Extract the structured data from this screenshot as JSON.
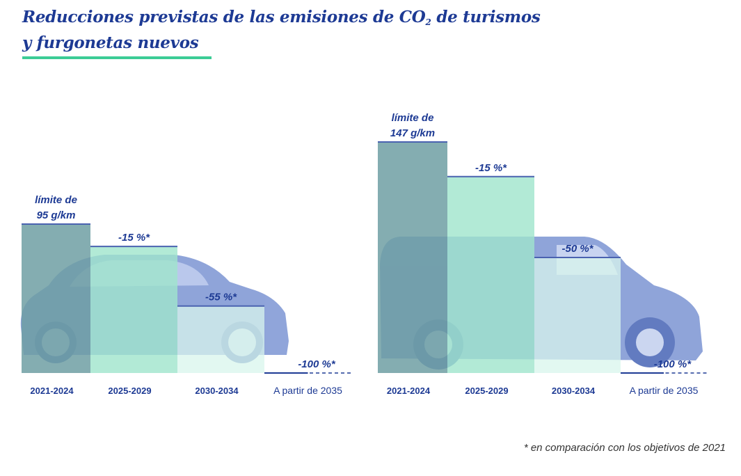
{
  "title": {
    "line1_pre": "Reducciones previstas de las emisiones de CO",
    "line1_sub": "2",
    "line1_post": " de turismos",
    "line2": "y furgonetas nuevos"
  },
  "footnote": "* en comparación con los objetivos de 2021",
  "colors": {
    "title": "#1d3a94",
    "accent_underline": "#3ccc96",
    "label": "#1d3a94",
    "bar_base": "#6f9fa3",
    "bar_2025": "#9fe5cc",
    "bar_2030": "#d8f5ec",
    "vehicle": "#7d95d4",
    "line": "#4a62b0"
  },
  "chart_data": [
    {
      "type": "bar",
      "name": "turismos",
      "title": "Turismos",
      "categories": [
        "2021-2024",
        "2025-2029",
        "2030-2034",
        "A partir de 2035"
      ],
      "reference_limit_g_km": 95,
      "reduction_pct": [
        0,
        -15,
        -55,
        -100
      ],
      "values_g_km": [
        95,
        80.75,
        42.75,
        0
      ],
      "labels": [
        [
          "límite de",
          "95 g/km"
        ],
        [
          "-15 %*"
        ],
        [
          "-55 %*"
        ],
        [
          "-100 %*"
        ]
      ],
      "ylim": [
        0,
        95
      ],
      "xlabel": "",
      "ylabel": ""
    },
    {
      "type": "bar",
      "name": "furgonetas",
      "title": "Furgonetas",
      "categories": [
        "2021-2024",
        "2025-2029",
        "2030-2034",
        "A partir de 2035"
      ],
      "reference_limit_g_km": 147,
      "reduction_pct": [
        0,
        -15,
        -50,
        -100
      ],
      "values_g_km": [
        147,
        124.95,
        73.5,
        0
      ],
      "labels": [
        [
          "límite de",
          "147 g/km"
        ],
        [
          "-15 %*"
        ],
        [
          "-50 %*"
        ],
        [
          "-100 %*"
        ]
      ],
      "ylim": [
        0,
        147
      ],
      "xlabel": "",
      "ylabel": ""
    }
  ]
}
